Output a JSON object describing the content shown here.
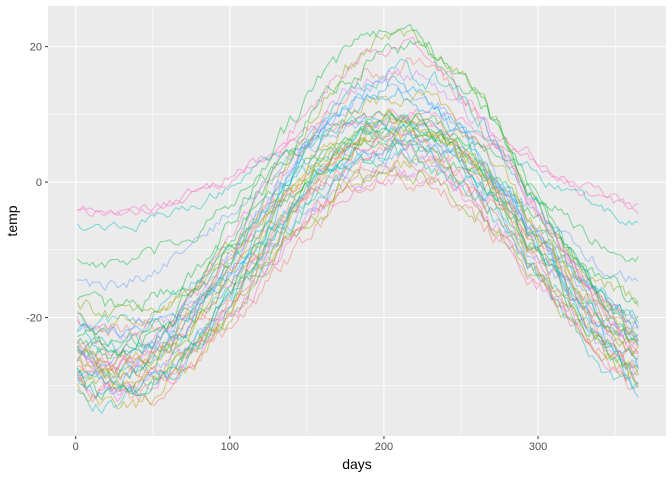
{
  "chart_data": {
    "type": "line",
    "xlabel": "days",
    "ylabel": "temp",
    "xlim": [
      -18,
      383
    ],
    "ylim": [
      -37.5,
      26
    ],
    "x_ticks": [
      0,
      100,
      200,
      300
    ],
    "x_tick_labels": [
      "0",
      "100",
      "200",
      "300"
    ],
    "y_ticks": [
      -20,
      0,
      20
    ],
    "y_tick_labels": [
      "-20",
      "0",
      "20"
    ],
    "grid": true,
    "legend": "none",
    "series_opacity": 0.45,
    "series": [
      {
        "color": "#ff61c3",
        "base": 3.0,
        "amp": 7.5,
        "peak": 210,
        "noise": 0.6
      },
      {
        "color": "#ff61c3",
        "base": 2.5,
        "amp": 7.0,
        "peak": 205,
        "noise": 0.6
      },
      {
        "color": "#00bfc4",
        "base": 1.5,
        "amp": 8.0,
        "peak": 205,
        "noise": 0.6
      },
      {
        "color": "#00ba38",
        "base": -1.0,
        "amp": 11.0,
        "peak": 205,
        "noise": 0.8
      },
      {
        "color": "#619cff",
        "base": -3.0,
        "amp": 12.0,
        "peak": 200,
        "noise": 0.8
      },
      {
        "color": "#00ba38",
        "base": -5.0,
        "amp": 13.5,
        "peak": 205,
        "noise": 0.9
      },
      {
        "color": "#7cae00",
        "base": -6.0,
        "amp": 13.5,
        "peak": 210,
        "noise": 0.9
      },
      {
        "color": "#00bfc4",
        "base": -6.5,
        "amp": 14.0,
        "peak": 205,
        "noise": 0.9
      },
      {
        "color": "#b79f00",
        "base": -7.0,
        "amp": 14.0,
        "peak": 205,
        "noise": 0.9
      },
      {
        "color": "#c77cff",
        "base": -7.5,
        "amp": 14.5,
        "peak": 210,
        "noise": 0.9
      },
      {
        "color": "#f8766d",
        "base": -8.0,
        "amp": 14.5,
        "peak": 208,
        "noise": 0.9
      },
      {
        "color": "#00a9ff",
        "base": -8.5,
        "amp": 14.0,
        "peak": 210,
        "noise": 0.9
      },
      {
        "color": "#00ba38",
        "base": -9.0,
        "amp": 15.0,
        "peak": 205,
        "noise": 0.9
      },
      {
        "color": "#00bfc4",
        "base": -10.0,
        "amp": 15.0,
        "peak": 210,
        "noise": 0.9
      },
      {
        "color": "#ff61c3",
        "base": -10.5,
        "amp": 15.5,
        "peak": 210,
        "noise": 1.0
      },
      {
        "color": "#f8766d",
        "base": -11.0,
        "amp": 16.0,
        "peak": 208,
        "noise": 1.0
      },
      {
        "color": "#619cff",
        "base": -12.0,
        "amp": 16.0,
        "peak": 212,
        "noise": 1.0
      },
      {
        "color": "#00c08b",
        "base": -12.5,
        "amp": 16.5,
        "peak": 210,
        "noise": 1.0
      },
      {
        "color": "#f8766d",
        "base": -13.0,
        "amp": 16.0,
        "peak": 212,
        "noise": 1.0
      },
      {
        "color": "#b79f00",
        "base": -13.5,
        "amp": 16.5,
        "peak": 210,
        "noise": 1.0
      },
      {
        "color": "#c77cff",
        "base": -14.0,
        "amp": 16.5,
        "peak": 212,
        "noise": 1.0
      },
      {
        "color": "#7cae00",
        "base": -14.5,
        "amp": 16.0,
        "peak": 210,
        "noise": 1.0
      },
      {
        "color": "#ff61c3",
        "base": -15.0,
        "amp": 16.0,
        "peak": 212,
        "noise": 1.0
      },
      {
        "color": "#f8766d",
        "base": -16.0,
        "amp": 16.0,
        "peak": 212,
        "noise": 1.0
      },
      {
        "color": "#00a9ff",
        "base": -9.0,
        "amp": 23.0,
        "peak": 210,
        "noise": 1.0
      },
      {
        "color": "#f8766d",
        "base": -5.0,
        "amp": 22.0,
        "peak": 212,
        "noise": 1.0
      },
      {
        "color": "#7cae00",
        "base": -3.5,
        "amp": 24.5,
        "peak": 210,
        "noise": 1.0
      },
      {
        "color": "#00ba38",
        "base": -1.5,
        "amp": 23.5,
        "peak": 205,
        "noise": 1.0
      },
      {
        "color": "#ff61c3",
        "base": -3.0,
        "amp": 22.5,
        "peak": 205,
        "noise": 1.0
      },
      {
        "color": "#00ba38",
        "base": -2.5,
        "amp": 22.0,
        "peak": 210,
        "noise": 1.0
      },
      {
        "color": "#00bfc4",
        "base": -4.0,
        "amp": 20.0,
        "peak": 212,
        "noise": 1.0
      },
      {
        "color": "#c77cff",
        "base": -4.5,
        "amp": 21.0,
        "peak": 210,
        "noise": 1.0
      },
      {
        "color": "#619cff",
        "base": -6.0,
        "amp": 20.0,
        "peak": 205,
        "noise": 1.0
      },
      {
        "color": "#b79f00",
        "base": -7.0,
        "amp": 19.5,
        "peak": 210,
        "noise": 1.0
      },
      {
        "color": "#00a9ff",
        "base": -8.0,
        "amp": 21.0,
        "peak": 205,
        "noise": 1.0
      },
      {
        "color": "#7cae00",
        "base": -9.0,
        "amp": 18.0,
        "peak": 210,
        "noise": 1.0
      },
      {
        "color": "#f8766d",
        "base": -10.0,
        "amp": 19.0,
        "peak": 212,
        "noise": 1.0
      },
      {
        "color": "#00ba38",
        "base": -11.0,
        "amp": 20.0,
        "peak": 210,
        "noise": 1.0
      },
      {
        "color": "#b79f00",
        "base": -12.0,
        "amp": 21.0,
        "peak": 212,
        "noise": 1.0
      },
      {
        "color": "#00bfc4",
        "base": -13.0,
        "amp": 20.0,
        "peak": 205,
        "noise": 1.0
      }
    ]
  }
}
